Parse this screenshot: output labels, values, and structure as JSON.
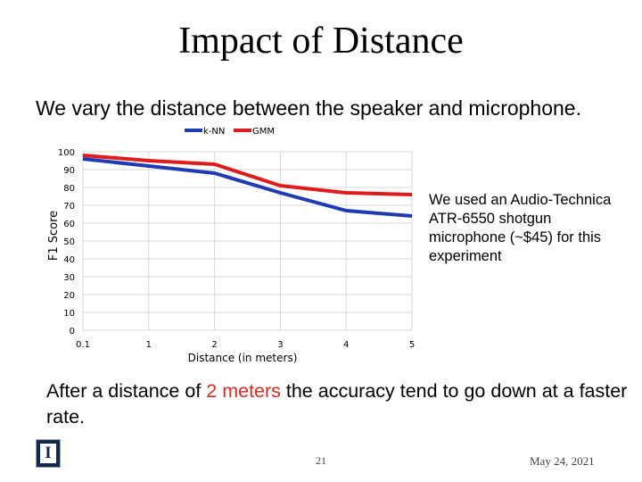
{
  "slide": {
    "title": "Impact of Distance",
    "subtitle": "We vary the distance between the speaker and microphone.",
    "side_note": "We used an Audio-Technica ATR-6550 shotgun microphone (~$45) for this experiment",
    "conclusion_pre": "After a distance of ",
    "conclusion_highlight": "2 meters",
    "conclusion_post": " the accuracy tend to go down at a faster rate.",
    "page_number": "21",
    "date": "May 24, 2021",
    "logo_letter": "I"
  },
  "colors": {
    "knn": "#1f3bb3",
    "gmm": "#e01b1b",
    "highlight": "#d92b1f",
    "logo_bg": "#13294b"
  },
  "chart_data": {
    "type": "line",
    "title": "",
    "xlabel": "Distance (in meters)",
    "ylabel": "F1 Score",
    "categories": [
      "0.1",
      "1",
      "2",
      "3",
      "4",
      "5"
    ],
    "ylim": [
      0,
      100
    ],
    "yticks": [
      0,
      10,
      20,
      30,
      40,
      50,
      60,
      70,
      80,
      90,
      100
    ],
    "grid": true,
    "legend_position": "top-center",
    "series": [
      {
        "name": "k-NN",
        "x": [
          0.1,
          1,
          2,
          3,
          4,
          5
        ],
        "values": [
          96,
          92,
          88,
          77,
          67,
          64
        ]
      },
      {
        "name": "GMM",
        "x": [
          0.1,
          1,
          2,
          3,
          4,
          5
        ],
        "values": [
          98,
          95,
          93,
          81,
          77,
          76
        ]
      }
    ]
  }
}
